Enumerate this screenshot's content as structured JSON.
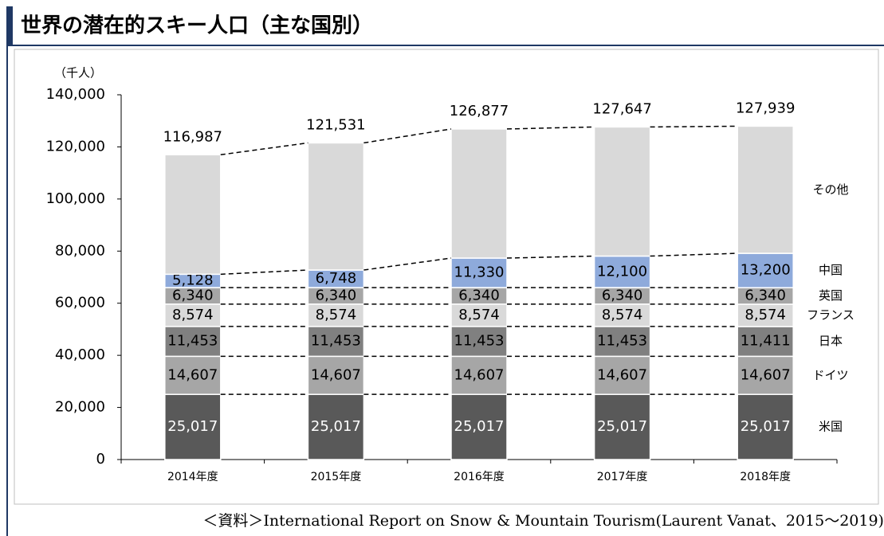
{
  "chart_data": {
    "type": "stacked_bar",
    "title": "世界の潜在的スキー人口（主な国別）",
    "unit_label": "（千人）",
    "source": "＜資料＞International Report on Snow & Mountain Tourism(Laurent Vanat、2015～2019).",
    "categories": [
      "2014年度",
      "2015年度",
      "2016年度",
      "2017年度",
      "2018年度"
    ],
    "series": [
      {
        "name": "米国",
        "color": "#595959",
        "label_color": "#ffffff",
        "values": [
          25017,
          25017,
          25017,
          25017,
          25017
        ],
        "value_labels": [
          "25,017",
          "25,017",
          "25,017",
          "25,017",
          "25,017"
        ]
      },
      {
        "name": "ドイツ",
        "color": "#a6a6a6",
        "label_color": "#000000",
        "values": [
          14607,
          14607,
          14607,
          14607,
          14607
        ],
        "value_labels": [
          "14,607",
          "14,607",
          "14,607",
          "14,607",
          "14,607"
        ]
      },
      {
        "name": "日本",
        "color": "#808080",
        "label_color": "#000000",
        "values": [
          11453,
          11453,
          11453,
          11453,
          11411
        ],
        "value_labels": [
          "11,453",
          "11,453",
          "11,453",
          "11,453",
          "11,411"
        ]
      },
      {
        "name": "フランス",
        "color": "#d9d9d9",
        "label_color": "#000000",
        "values": [
          8574,
          8574,
          8574,
          8574,
          8574
        ],
        "value_labels": [
          "8,574",
          "8,574",
          "8,574",
          "8,574",
          "8,574"
        ]
      },
      {
        "name": "英国",
        "color": "#a6a6a6",
        "label_color": "#000000",
        "values": [
          6340,
          6340,
          6340,
          6340,
          6340
        ],
        "value_labels": [
          "6,340",
          "6,340",
          "6,340",
          "6,340",
          "6,340"
        ]
      },
      {
        "name": "中国",
        "color": "#8eaadb",
        "label_color": "#000000",
        "values": [
          5128,
          6748,
          11330,
          12100,
          13200
        ],
        "value_labels": [
          "5,128",
          "6,748",
          "11,330",
          "12,100",
          "13,200"
        ]
      },
      {
        "name": "その他",
        "color": "#d9d9d9",
        "values": [
          45868,
          48792,
          49556,
          49556,
          48790
        ]
      }
    ],
    "totals": {
      "values": [
        116987,
        121531,
        126877,
        127647,
        127939
      ],
      "value_labels": [
        "116,987",
        "121,531",
        "126,877",
        "127,647",
        "127,939"
      ]
    },
    "ylim": [
      0,
      140000
    ],
    "yticks": [
      0,
      {
        "value": 20000,
        "label": "20,000"
      },
      {
        "value": 40000,
        "label": "40,000"
      },
      {
        "value": 60000,
        "label": "60,000"
      },
      {
        "value": 80000,
        "label": "80,000"
      },
      {
        "value": 100000,
        "label": "100,000"
      },
      {
        "value": 120000,
        "label": "120,000"
      },
      {
        "value": 140000,
        "label": "140,000"
      }
    ]
  }
}
